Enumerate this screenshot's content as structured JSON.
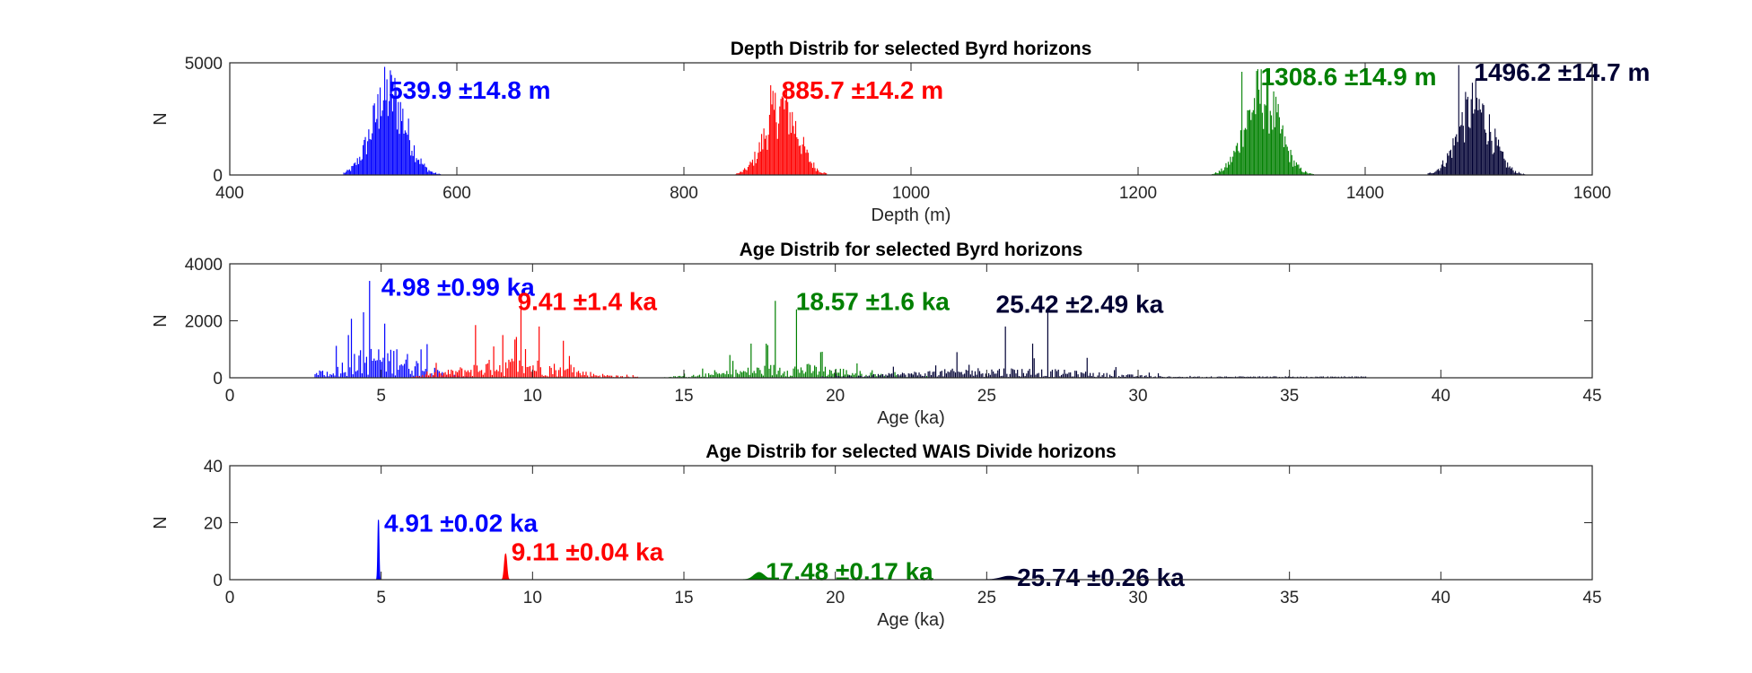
{
  "chart_data": [
    {
      "type": "bar",
      "title": "Depth Distrib for selected Byrd horizons",
      "xlabel": "Depth (m)",
      "ylabel": "N",
      "xlim": [
        400,
        1600
      ],
      "ylim": [
        0,
        5000
      ],
      "xticks": [
        400,
        600,
        800,
        1000,
        1200,
        1400,
        1600
      ],
      "yticks": [
        0,
        5000
      ],
      "grid": false,
      "series": [
        {
          "color": "#0000ff",
          "shape": "gaussian",
          "center": 539.9,
          "sigma": 14.8,
          "peak": 3500,
          "spike_at": 532,
          "spike_height": 3900,
          "range": [
            500,
            585
          ],
          "label": "539.9 ±14.8 m",
          "label_x": 540,
          "label_y": 3800
        },
        {
          "color": "#ff0000",
          "shape": "gaussian",
          "center": 885.7,
          "sigma": 14.2,
          "peak": 3000,
          "spike_at": 876,
          "spike_height": 4000,
          "range": [
            845,
            925
          ],
          "label": "885.7 ±14.2 m",
          "label_x": 886,
          "label_y": 3800
        },
        {
          "color": "#008000",
          "shape": "gaussian",
          "center": 1308.6,
          "sigma": 14.9,
          "peak": 3500,
          "spike_at": 1291,
          "spike_height": 4600,
          "range": [
            1265,
            1355
          ],
          "label": "1308.6 ±14.9 m",
          "label_x": 1308,
          "label_y": 4400
        },
        {
          "color": "#000033",
          "shape": "gaussian",
          "center": 1496.2,
          "sigma": 14.7,
          "peak": 3000,
          "spike_at": 1482,
          "spike_height": 4900,
          "range": [
            1455,
            1540
          ],
          "label": "1496.2 ±14.7 m",
          "label_x": 1496,
          "label_y": 4600
        }
      ]
    },
    {
      "type": "bar",
      "title": "Age Distrib for selected Byrd horizons",
      "xlabel": "Age (ka)",
      "ylabel": "N",
      "xlim": [
        0,
        45
      ],
      "ylim": [
        0,
        4000
      ],
      "xticks": [
        0,
        5,
        10,
        15,
        20,
        25,
        30,
        35,
        40,
        45
      ],
      "yticks": [
        0,
        2000,
        4000
      ],
      "grid": false,
      "series": [
        {
          "color": "#0000ff",
          "shape": "spiky",
          "center": 4.98,
          "sigma": 0.99,
          "peak": 800,
          "range": [
            2.8,
            8.0
          ],
          "spikes": [
            [
              4.6,
              3400
            ],
            [
              4.4,
              2300
            ],
            [
              5.1,
              1900
            ],
            [
              3.9,
              1500
            ],
            [
              5.5,
              1000
            ]
          ],
          "label": "4.98 ±0.99 ka",
          "label_x": 5,
          "label_y": 3200
        },
        {
          "color": "#ff0000",
          "shape": "spiky",
          "center": 9.41,
          "sigma": 1.4,
          "peak": 500,
          "range": [
            6.0,
            13.5
          ],
          "spikes": [
            [
              9.6,
              2600
            ],
            [
              8.1,
              1850
            ],
            [
              10.2,
              1800
            ],
            [
              9.0,
              1500
            ],
            [
              11.0,
              1300
            ],
            [
              8.7,
              1100
            ]
          ],
          "label": "9.41 ±1.4 ka",
          "label_x": 9.5,
          "label_y": 2700
        },
        {
          "color": "#008000",
          "shape": "spiky",
          "center": 18.57,
          "sigma": 1.6,
          "peak": 350,
          "range": [
            14.3,
            23.5
          ],
          "spikes": [
            [
              18.0,
              2700
            ],
            [
              18.7,
              2400
            ],
            [
              17.2,
              1200
            ],
            [
              19.5,
              900
            ],
            [
              16.5,
              800
            ]
          ],
          "label": "18.57 ±1.6 ka",
          "label_x": 18.7,
          "label_y": 2700
        },
        {
          "color": "#000033",
          "shape": "spiky",
          "center": 25.42,
          "sigma": 2.49,
          "peak": 250,
          "range": [
            19.5,
            37.5
          ],
          "spikes": [
            [
              27.0,
              2400
            ],
            [
              25.6,
              1800
            ],
            [
              26.5,
              1200
            ],
            [
              24.0,
              900
            ],
            [
              28.3,
              700
            ]
          ],
          "label": "25.42 ±2.49 ka",
          "label_x": 25.3,
          "label_y": 2600
        }
      ]
    },
    {
      "type": "area",
      "title": "Age Distrib for selected WAIS Divide horizons",
      "xlabel": "Age (ka)",
      "ylabel": "N",
      "xlim": [
        0,
        45
      ],
      "ylim": [
        0,
        40
      ],
      "xticks": [
        0,
        5,
        10,
        15,
        20,
        25,
        30,
        35,
        40,
        45
      ],
      "yticks": [
        0,
        20,
        40
      ],
      "grid": false,
      "series": [
        {
          "color": "#0000ff",
          "shape": "gaussian",
          "center": 4.91,
          "sigma": 0.02,
          "peak": 21,
          "label": "4.91 ±0.02 ka",
          "label_x": 5.1,
          "label_y": 20
        },
        {
          "color": "#ff0000",
          "shape": "gaussian",
          "center": 9.11,
          "sigma": 0.04,
          "peak": 9,
          "label": "9.11 ±0.04 ka",
          "label_x": 9.3,
          "label_y": 10
        },
        {
          "color": "#008000",
          "shape": "gaussian",
          "center": 17.48,
          "sigma": 0.17,
          "peak": 2.5,
          "label": "17.48 ±0.17 ka",
          "label_x": 17.7,
          "label_y": 3
        },
        {
          "color": "#000033",
          "shape": "gaussian",
          "center": 25.74,
          "sigma": 0.26,
          "peak": 1.2,
          "label": "25.74 ±0.26 ka",
          "label_x": 26.0,
          "label_y": 1
        }
      ]
    }
  ]
}
